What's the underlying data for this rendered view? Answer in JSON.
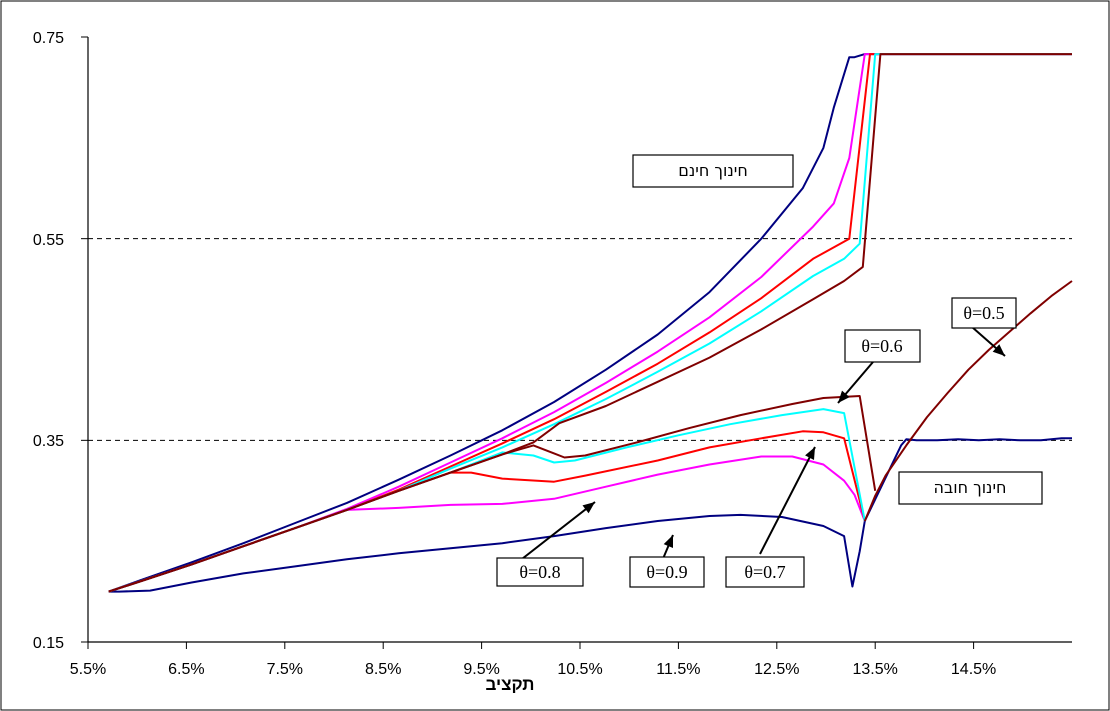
{
  "chart_data": {
    "type": "line",
    "title": "",
    "xlabel": "תקציב",
    "ylabel": "",
    "xlim": [
      0.055,
      0.15
    ],
    "ylim": [
      0.15,
      0.75
    ],
    "x_ticks": [
      "5.5%",
      "6.5%",
      "7.5%",
      "8.5%",
      "9.5%",
      "10.5%",
      "11.5%",
      "12.5%",
      "13.5%",
      "14.5%"
    ],
    "y_ticks": [
      "0.15",
      "0.35",
      "0.55",
      "0.75"
    ],
    "gridlines_y": [
      0.35,
      0.55
    ],
    "labels": [
      {
        "text": "חינוך חינם"
      },
      {
        "text": "חינוך חובה"
      },
      {
        "text": "θ=0.5"
      },
      {
        "text": "θ=0.6"
      },
      {
        "text": "θ=0.7"
      },
      {
        "text": "θ=0.8"
      },
      {
        "text": "θ=0.9"
      }
    ],
    "series": [
      {
        "color": "#000080",
        "points": [
          [
            0.057,
            0.2
          ],
          [
            0.058,
            0.2
          ],
          [
            0.061,
            0.201
          ],
          [
            0.065,
            0.209
          ],
          [
            0.07,
            0.218
          ],
          [
            0.075,
            0.225
          ],
          [
            0.08,
            0.232
          ],
          [
            0.085,
            0.238
          ],
          [
            0.09,
            0.243
          ],
          [
            0.095,
            0.248
          ],
          [
            0.1,
            0.255
          ],
          [
            0.105,
            0.263
          ],
          [
            0.11,
            0.27
          ],
          [
            0.115,
            0.275
          ],
          [
            0.118,
            0.276
          ],
          [
            0.122,
            0.274
          ],
          [
            0.126,
            0.265
          ],
          [
            0.128,
            0.255
          ],
          [
            0.1288,
            0.205
          ],
          [
            0.1295,
            0.24
          ],
          [
            0.13,
            0.27
          ]
        ]
      },
      {
        "color": "#000080",
        "points": [
          [
            0.057,
            0.2
          ],
          [
            0.06,
            0.211
          ],
          [
            0.065,
            0.229
          ],
          [
            0.07,
            0.248
          ],
          [
            0.075,
            0.268
          ],
          [
            0.08,
            0.288
          ],
          [
            0.085,
            0.311
          ],
          [
            0.09,
            0.335
          ],
          [
            0.095,
            0.36
          ],
          [
            0.1,
            0.388
          ],
          [
            0.105,
            0.42
          ],
          [
            0.11,
            0.455
          ],
          [
            0.115,
            0.497
          ],
          [
            0.12,
            0.55
          ],
          [
            0.124,
            0.6
          ],
          [
            0.126,
            0.64
          ],
          [
            0.127,
            0.68
          ],
          [
            0.1285,
            0.73
          ],
          [
            0.129,
            0.73
          ],
          [
            0.13,
            0.733
          ],
          [
            0.15,
            0.733
          ]
        ]
      },
      {
        "color": "#ff00ff",
        "points": [
          [
            0.057,
            0.2
          ],
          [
            0.06,
            0.21
          ],
          [
            0.065,
            0.227
          ],
          [
            0.07,
            0.245
          ],
          [
            0.075,
            0.263
          ],
          [
            0.08,
            0.281
          ],
          [
            0.085,
            0.283
          ],
          [
            0.09,
            0.286
          ],
          [
            0.095,
            0.287
          ],
          [
            0.1,
            0.292
          ],
          [
            0.105,
            0.304
          ],
          [
            0.11,
            0.316
          ],
          [
            0.115,
            0.326
          ],
          [
            0.12,
            0.334
          ],
          [
            0.123,
            0.334
          ],
          [
            0.126,
            0.326
          ],
          [
            0.128,
            0.31
          ],
          [
            0.129,
            0.296
          ],
          [
            0.13,
            0.27
          ]
        ]
      },
      {
        "color": "#ff00ff",
        "points": [
          [
            0.057,
            0.2
          ],
          [
            0.06,
            0.21
          ],
          [
            0.065,
            0.227
          ],
          [
            0.07,
            0.245
          ],
          [
            0.075,
            0.263
          ],
          [
            0.08,
            0.282
          ],
          [
            0.085,
            0.304
          ],
          [
            0.09,
            0.328
          ],
          [
            0.095,
            0.352
          ],
          [
            0.1,
            0.378
          ],
          [
            0.105,
            0.407
          ],
          [
            0.11,
            0.438
          ],
          [
            0.115,
            0.472
          ],
          [
            0.12,
            0.512
          ],
          [
            0.125,
            0.562
          ],
          [
            0.127,
            0.585
          ],
          [
            0.1285,
            0.63
          ],
          [
            0.13,
            0.733
          ],
          [
            0.15,
            0.733
          ]
        ]
      },
      {
        "color": "#ff0000",
        "points": [
          [
            0.057,
            0.2
          ],
          [
            0.06,
            0.21
          ],
          [
            0.065,
            0.227
          ],
          [
            0.07,
            0.245
          ],
          [
            0.075,
            0.263
          ],
          [
            0.08,
            0.281
          ],
          [
            0.085,
            0.3
          ],
          [
            0.09,
            0.318
          ],
          [
            0.092,
            0.318
          ],
          [
            0.095,
            0.312
          ],
          [
            0.1,
            0.309
          ],
          [
            0.103,
            0.315
          ],
          [
            0.11,
            0.33
          ],
          [
            0.115,
            0.343
          ],
          [
            0.12,
            0.352
          ],
          [
            0.124,
            0.359
          ],
          [
            0.126,
            0.358
          ],
          [
            0.128,
            0.352
          ],
          [
            0.13,
            0.27
          ]
        ]
      },
      {
        "color": "#ff0000",
        "points": [
          [
            0.057,
            0.2
          ],
          [
            0.06,
            0.21
          ],
          [
            0.065,
            0.227
          ],
          [
            0.07,
            0.245
          ],
          [
            0.075,
            0.263
          ],
          [
            0.08,
            0.281
          ],
          [
            0.085,
            0.301
          ],
          [
            0.09,
            0.324
          ],
          [
            0.095,
            0.347
          ],
          [
            0.1,
            0.371
          ],
          [
            0.105,
            0.398
          ],
          [
            0.11,
            0.426
          ],
          [
            0.115,
            0.457
          ],
          [
            0.12,
            0.491
          ],
          [
            0.125,
            0.53
          ],
          [
            0.1285,
            0.55
          ],
          [
            0.1305,
            0.733
          ],
          [
            0.15,
            0.733
          ]
        ]
      },
      {
        "color": "#00ffff",
        "points": [
          [
            0.057,
            0.2
          ],
          [
            0.06,
            0.21
          ],
          [
            0.065,
            0.227
          ],
          [
            0.07,
            0.245
          ],
          [
            0.075,
            0.263
          ],
          [
            0.08,
            0.281
          ],
          [
            0.085,
            0.3
          ],
          [
            0.09,
            0.318
          ],
          [
            0.095,
            0.338
          ],
          [
            0.098,
            0.335
          ],
          [
            0.1,
            0.328
          ],
          [
            0.102,
            0.33
          ],
          [
            0.107,
            0.343
          ],
          [
            0.112,
            0.355
          ],
          [
            0.117,
            0.366
          ],
          [
            0.122,
            0.375
          ],
          [
            0.126,
            0.381
          ],
          [
            0.128,
            0.377
          ],
          [
            0.13,
            0.27
          ]
        ]
      },
      {
        "color": "#00ffff",
        "points": [
          [
            0.057,
            0.2
          ],
          [
            0.06,
            0.21
          ],
          [
            0.065,
            0.227
          ],
          [
            0.07,
            0.245
          ],
          [
            0.075,
            0.263
          ],
          [
            0.08,
            0.281
          ],
          [
            0.085,
            0.3
          ],
          [
            0.09,
            0.322
          ],
          [
            0.095,
            0.343
          ],
          [
            0.1,
            0.366
          ],
          [
            0.105,
            0.391
          ],
          [
            0.11,
            0.418
          ],
          [
            0.115,
            0.446
          ],
          [
            0.12,
            0.478
          ],
          [
            0.125,
            0.513
          ],
          [
            0.128,
            0.53
          ],
          [
            0.1295,
            0.545
          ],
          [
            0.131,
            0.733
          ],
          [
            0.15,
            0.733
          ]
        ]
      },
      {
        "color": "#800000",
        "points": [
          [
            0.057,
            0.2
          ],
          [
            0.06,
            0.21
          ],
          [
            0.065,
            0.227
          ],
          [
            0.07,
            0.245
          ],
          [
            0.075,
            0.263
          ],
          [
            0.08,
            0.281
          ],
          [
            0.085,
            0.3
          ],
          [
            0.09,
            0.318
          ],
          [
            0.095,
            0.336
          ],
          [
            0.098,
            0.345
          ],
          [
            0.1,
            0.337
          ],
          [
            0.101,
            0.333
          ],
          [
            0.103,
            0.335
          ],
          [
            0.108,
            0.348
          ],
          [
            0.113,
            0.362
          ],
          [
            0.118,
            0.375
          ],
          [
            0.123,
            0.386
          ],
          [
            0.126,
            0.392
          ],
          [
            0.1295,
            0.394
          ],
          [
            0.131,
            0.3
          ]
        ]
      },
      {
        "color": "#800000",
        "points": [
          [
            0.057,
            0.2
          ],
          [
            0.06,
            0.21
          ],
          [
            0.065,
            0.227
          ],
          [
            0.07,
            0.245
          ],
          [
            0.075,
            0.263
          ],
          [
            0.08,
            0.281
          ],
          [
            0.085,
            0.3
          ],
          [
            0.09,
            0.318
          ],
          [
            0.095,
            0.336
          ],
          [
            0.098,
            0.348
          ],
          [
            0.1005,
            0.367
          ],
          [
            0.105,
            0.384
          ],
          [
            0.11,
            0.408
          ],
          [
            0.115,
            0.432
          ],
          [
            0.12,
            0.46
          ],
          [
            0.125,
            0.49
          ],
          [
            0.128,
            0.508
          ],
          [
            0.1298,
            0.522
          ],
          [
            0.1315,
            0.733
          ],
          [
            0.15,
            0.733
          ]
        ]
      },
      {
        "color": "#000080",
        "points": [
          [
            0.13,
            0.27
          ],
          [
            0.1335,
            0.345
          ],
          [
            0.134,
            0.351
          ],
          [
            0.135,
            0.35
          ],
          [
            0.137,
            0.35
          ],
          [
            0.139,
            0.351
          ],
          [
            0.141,
            0.35
          ],
          [
            0.143,
            0.351
          ],
          [
            0.145,
            0.35
          ],
          [
            0.147,
            0.35
          ],
          [
            0.149,
            0.352
          ],
          [
            0.15,
            0.352
          ]
        ]
      },
      {
        "color": "#800000",
        "points": [
          [
            0.13,
            0.27
          ],
          [
            0.131,
            0.295
          ],
          [
            0.132,
            0.315
          ],
          [
            0.134,
            0.345
          ],
          [
            0.136,
            0.373
          ],
          [
            0.138,
            0.397
          ],
          [
            0.14,
            0.42
          ],
          [
            0.142,
            0.44
          ],
          [
            0.144,
            0.458
          ],
          [
            0.146,
            0.476
          ],
          [
            0.148,
            0.493
          ],
          [
            0.15,
            0.508
          ]
        ]
      }
    ]
  }
}
